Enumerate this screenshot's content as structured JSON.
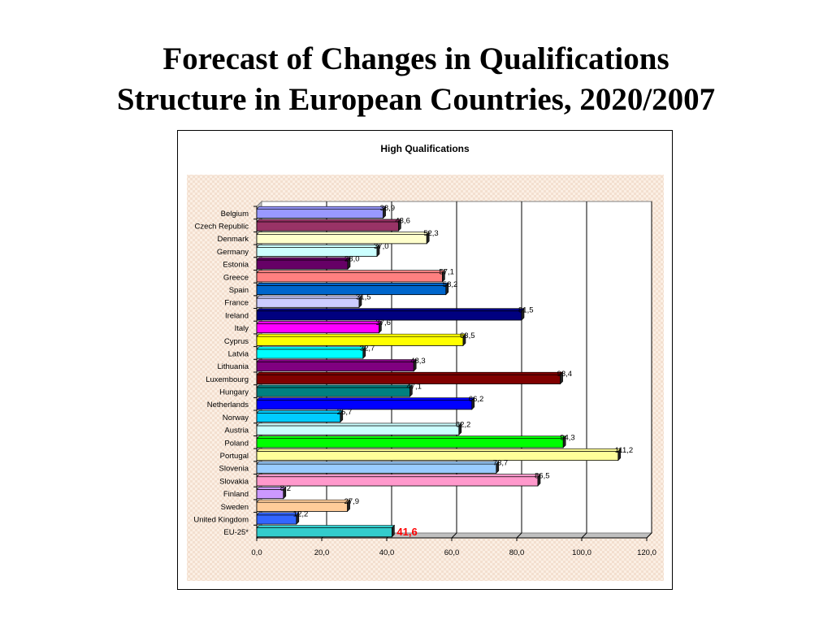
{
  "slide": {
    "title_line1": "Forecast of Changes in Qualifications",
    "title_line2": "Structure in European Countries, 2020/2007"
  },
  "chart_data": {
    "type": "bar",
    "orientation": "horizontal",
    "title": "High Qualifications",
    "xlabel": "",
    "ylabel": "",
    "xlim": [
      0,
      120
    ],
    "x_ticks": [
      "0,0",
      "20,0",
      "40,0",
      "60,0",
      "80,0",
      "100,0",
      "120,0"
    ],
    "grid": "vertical gridlines",
    "legend": "none",
    "categories": [
      "Belgium",
      "Czech Republic",
      "Denmark",
      "Germany",
      "Estonia",
      "Greece",
      "Spain",
      "France",
      "Ireland",
      "Italy",
      "Cyprus",
      "Latvia",
      "Lithuania",
      "Luxembourg",
      "Hungary",
      "Netherlands",
      "Norway",
      "Austria",
      "Poland",
      "Portugal",
      "Slovenia",
      "Slovakia",
      "Finland",
      "Sweden",
      "United Kingdom",
      "EU-25*"
    ],
    "values": [
      38.9,
      43.6,
      52.3,
      37.0,
      28.0,
      57.1,
      58.2,
      31.5,
      81.5,
      37.6,
      63.5,
      32.7,
      48.3,
      93.4,
      47.1,
      66.2,
      25.7,
      62.2,
      94.3,
      111.2,
      73.7,
      86.5,
      8.2,
      27.9,
      12.2,
      41.6
    ],
    "value_labels": [
      "38,9",
      "43,6",
      "52,3",
      "37,0",
      "28,0",
      "57,1",
      "58,2",
      "31,5",
      "81,5",
      "37,6",
      "63,5",
      "32,7",
      "48,3",
      "93,4",
      "47,1",
      "66,2",
      "25,7",
      "62,2",
      "94,3",
      "111,2",
      "73,7",
      "86,5",
      "8,2",
      "27,9",
      "12,2",
      "41,6"
    ],
    "colors": [
      "#9999ff",
      "#993366",
      "#ffffcc",
      "#ccffff",
      "#660066",
      "#ff8080",
      "#0066cc",
      "#ccccff",
      "#000080",
      "#ff00ff",
      "#ffff00",
      "#00ffff",
      "#800080",
      "#800000",
      "#008080",
      "#0000ff",
      "#00ccff",
      "#ccffff",
      "#00ff00",
      "#ffff99",
      "#99ccff",
      "#ff99cc",
      "#cc99ff",
      "#ffcc99",
      "#3366ff",
      "#33cccc"
    ],
    "highlight_label_color": "#ff0000"
  }
}
